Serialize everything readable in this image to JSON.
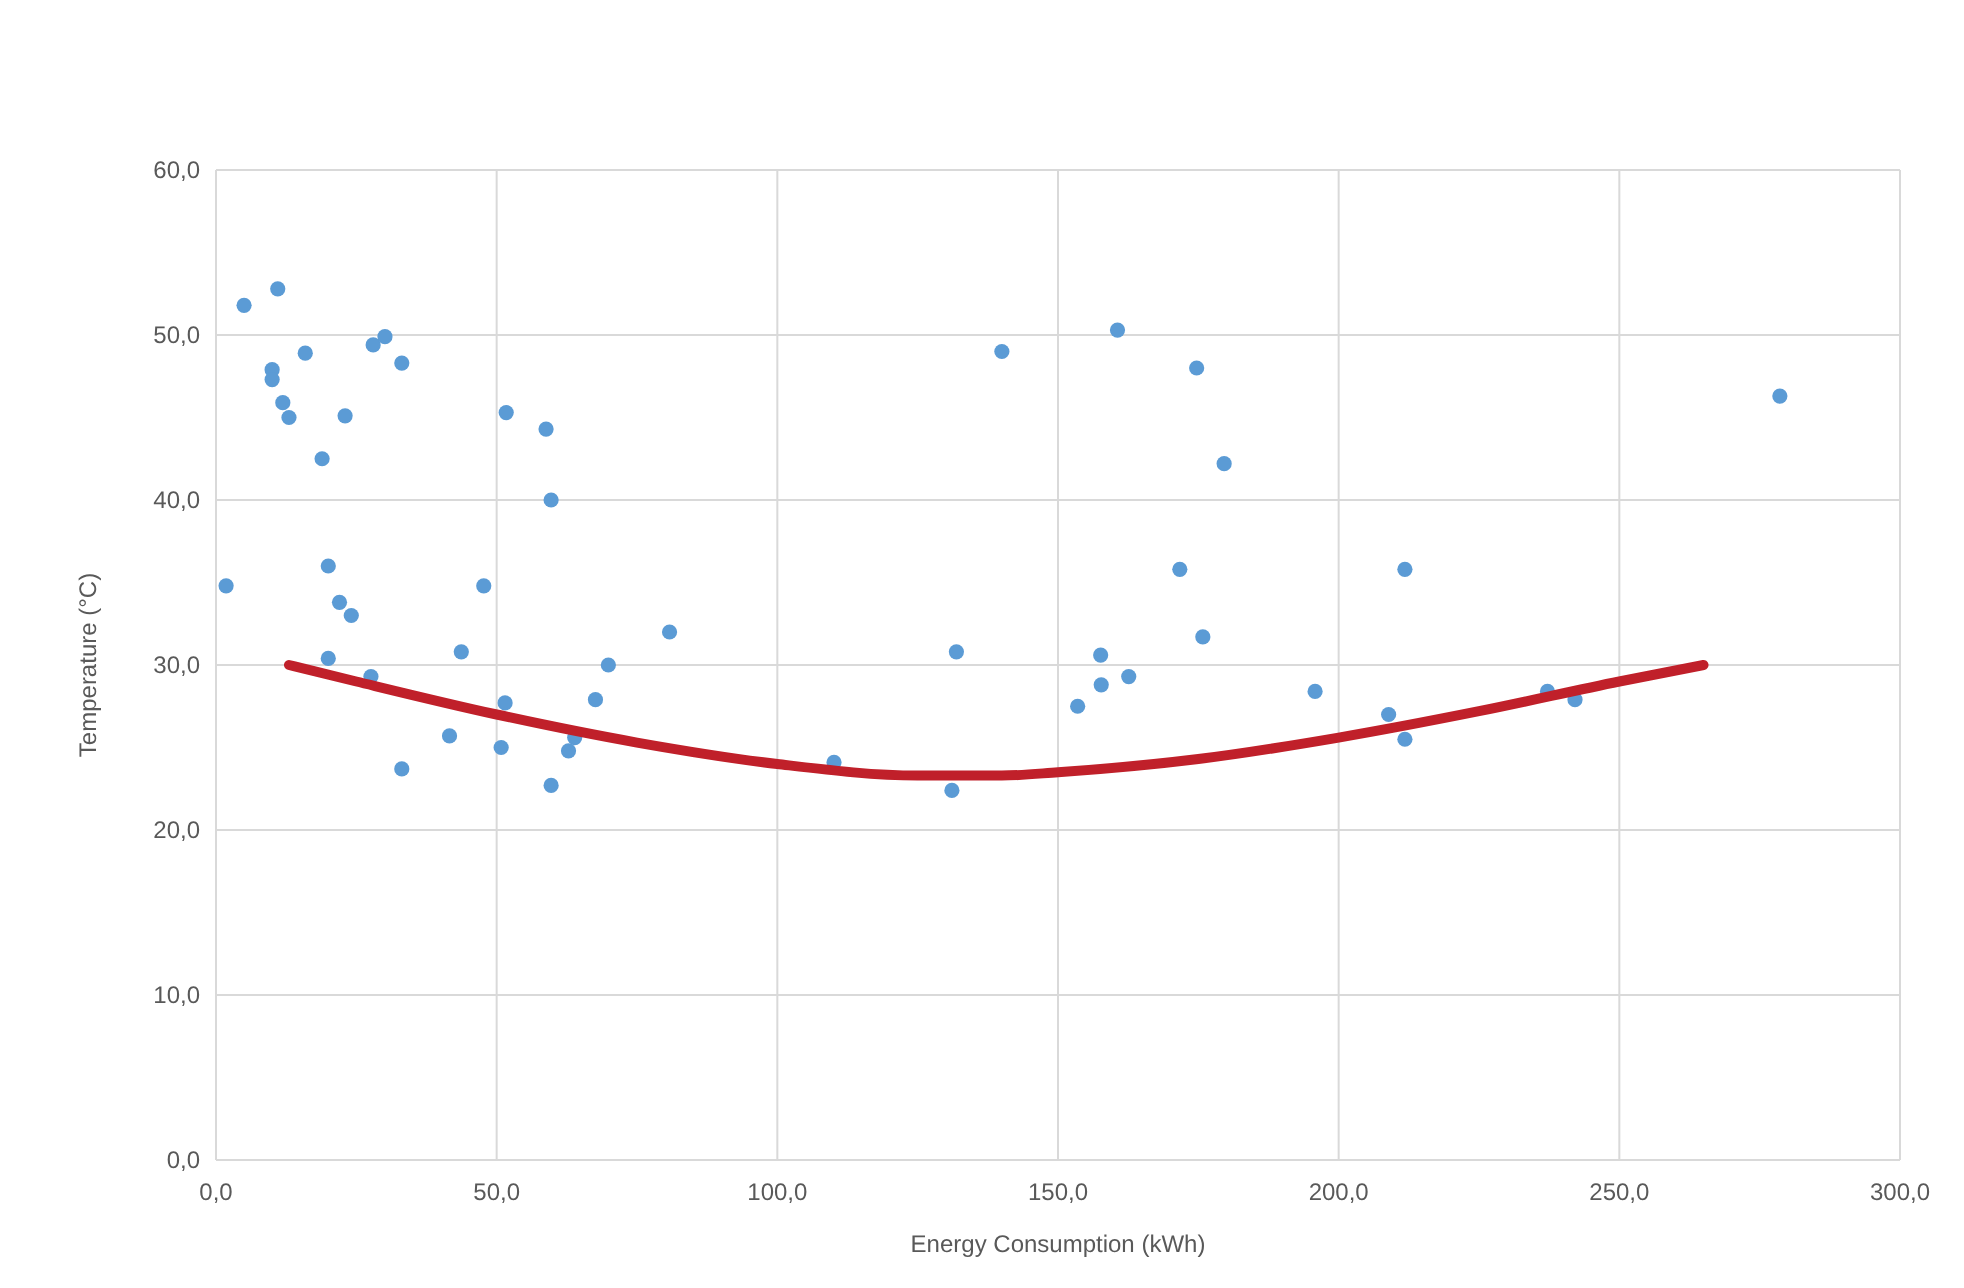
{
  "chart_data": {
    "type": "scatter",
    "xlabel": "Energy Consumption (kWh)",
    "ylabel": "Temperature (°C)",
    "xlim": [
      0,
      300
    ],
    "ylim": [
      0,
      60
    ],
    "xticks": [
      {
        "value": 0,
        "label": "0,0"
      },
      {
        "value": 50,
        "label": "50,0"
      },
      {
        "value": 100,
        "label": "100,0"
      },
      {
        "value": 150,
        "label": "150,0"
      },
      {
        "value": 200,
        "label": "200,0"
      },
      {
        "value": 250,
        "label": "250,0"
      },
      {
        "value": 300,
        "label": "300,0"
      }
    ],
    "yticks": [
      {
        "value": 0,
        "label": "0,0"
      },
      {
        "value": 10,
        "label": "10,0"
      },
      {
        "value": 20,
        "label": "20,0"
      },
      {
        "value": 30,
        "label": "30,0"
      },
      {
        "value": 40,
        "label": "40,0"
      },
      {
        "value": 50,
        "label": "50,0"
      },
      {
        "value": 60,
        "label": "60,0"
      }
    ],
    "grid": true,
    "marker": "circle",
    "series": [
      {
        "color": "#5b9bd5",
        "x": [
          1.8,
          5,
          11,
          10,
          10,
          11.9,
          13,
          15.9,
          18.9,
          20,
          22,
          24.1,
          20,
          23,
          28,
          30.1,
          33.1,
          51.7,
          58.8,
          59.7,
          47.7,
          43.7,
          80.8,
          69.9,
          67.6,
          63.9,
          62.8,
          59.7,
          50.8,
          41.6,
          33.1,
          27.6,
          51.5,
          140,
          160.6,
          174.7,
          179.6,
          171.7,
          211.8,
          175.8,
          131.9,
          157.6,
          157.7,
          162.6,
          153.5,
          195.8,
          208.9,
          211.8,
          237.2,
          242.1,
          278.6,
          131.1,
          110.1
        ],
        "values": [
          34.8,
          51.8,
          52.8,
          47.9,
          47.3,
          45.9,
          45.0,
          48.9,
          42.5,
          36.0,
          33.8,
          33.0,
          30.4,
          45.1,
          49.4,
          49.9,
          48.3,
          45.3,
          44.3,
          40.0,
          34.8,
          30.8,
          32.0,
          30.0,
          27.9,
          25.6,
          24.8,
          22.7,
          25.0,
          25.7,
          23.7,
          29.3,
          27.7,
          49.0,
          50.3,
          48.0,
          42.2,
          35.8,
          35.8,
          31.7,
          30.8,
          30.6,
          28.8,
          29.3,
          27.5,
          28.4,
          27.0,
          25.5,
          28.4,
          27.9,
          46.3,
          22.4,
          24.1
        ]
      },
      {
        "type": "line",
        "color": "#c0202a",
        "line_style": "solid",
        "marker": "none",
        "x": [
          13,
          25,
          50,
          75,
          100,
          125,
          140,
          150,
          175,
          200,
          225,
          250,
          265
        ],
        "values": [
          30.0,
          29.0,
          27.0,
          25.3,
          24.0,
          23.3,
          23.3,
          23.5,
          24.3,
          25.6,
          27.2,
          29.0,
          30.0
        ]
      }
    ]
  }
}
